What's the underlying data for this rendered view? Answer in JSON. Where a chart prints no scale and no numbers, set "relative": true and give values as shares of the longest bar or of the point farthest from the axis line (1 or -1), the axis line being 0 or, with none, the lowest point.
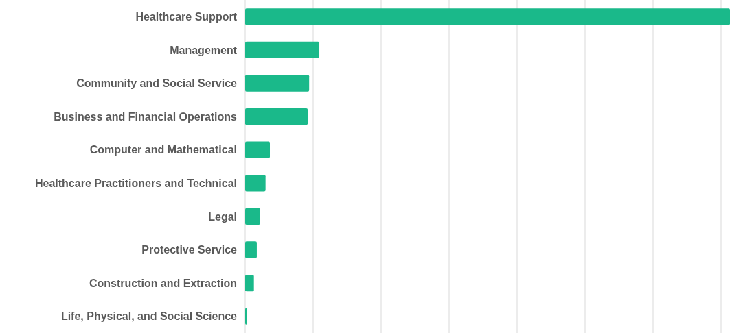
{
  "chart_data": {
    "type": "bar",
    "orientation": "horizontal",
    "relative": true,
    "grid": true,
    "color": "#1ab98a",
    "categories": [
      "Healthcare Support",
      "Management",
      "Community and Social Service",
      "Business and Financial Operations",
      "Computer and Mathematical",
      "Healthcare Practitioners and Technical",
      "Legal",
      "Protective Service",
      "Construction and Extraction",
      "Life, Physical, and Social Science"
    ],
    "values": [
      1,
      0.153,
      0.132,
      0.129,
      0.051,
      0.042,
      0.031,
      0.024,
      0.018,
      0.004
    ]
  }
}
